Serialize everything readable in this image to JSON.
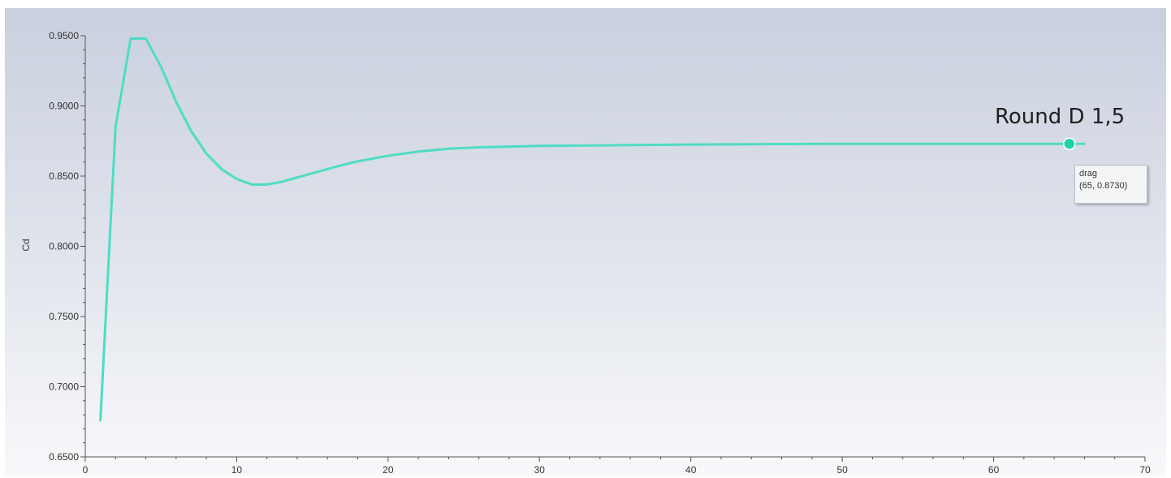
{
  "chart_data": {
    "type": "line",
    "title": "",
    "xlabel": "",
    "ylabel": "Cd",
    "xlim": [
      0,
      70
    ],
    "ylim": [
      0.65,
      0.95
    ],
    "x_ticks": [
      "0",
      "10",
      "20",
      "30",
      "40",
      "50",
      "60",
      "70"
    ],
    "y_ticks": [
      "0.6500",
      "0.7000",
      "0.7500",
      "0.8000",
      "0.8500",
      "0.9000",
      "0.9500"
    ],
    "grid": false,
    "series": [
      {
        "color": "#4fdcc4",
        "points": [
          [
            1,
            0.676
          ],
          [
            2,
            0.885
          ],
          [
            3,
            0.948
          ],
          [
            4,
            0.948
          ],
          [
            5,
            0.928
          ],
          [
            6,
            0.903
          ],
          [
            7,
            0.882
          ],
          [
            8,
            0.866
          ],
          [
            9,
            0.855
          ],
          [
            10,
            0.848
          ],
          [
            11,
            0.844
          ],
          [
            12,
            0.844
          ],
          [
            13,
            0.846
          ],
          [
            14,
            0.849
          ],
          [
            15,
            0.852
          ],
          [
            16,
            0.855
          ],
          [
            17,
            0.858
          ],
          [
            18,
            0.8605
          ],
          [
            19,
            0.8625
          ],
          [
            20,
            0.8645
          ],
          [
            21,
            0.866
          ],
          [
            22,
            0.8675
          ],
          [
            23,
            0.8685
          ],
          [
            24,
            0.8695
          ],
          [
            25,
            0.87
          ],
          [
            26,
            0.8705
          ],
          [
            28,
            0.871
          ],
          [
            30,
            0.8715
          ],
          [
            35,
            0.872
          ],
          [
            40,
            0.8725
          ],
          [
            50,
            0.873
          ],
          [
            60,
            0.873
          ],
          [
            65,
            0.873
          ],
          [
            66,
            0.873
          ]
        ]
      }
    ],
    "highlight_point": {
      "x": 65,
      "y": 0.873,
      "color": "#1fd3a8"
    },
    "annotation": {
      "text": "Round D 1,5"
    },
    "tooltip": {
      "line1": "drag",
      "line2": "(65, 0.8730)"
    }
  }
}
